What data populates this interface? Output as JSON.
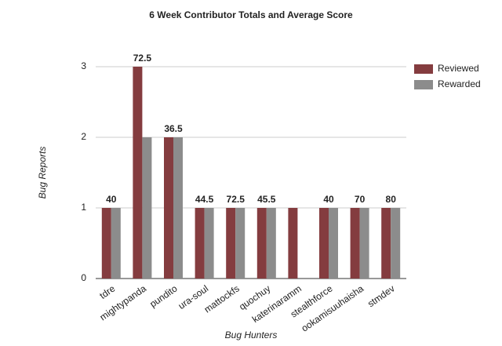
{
  "chart_data": {
    "type": "bar",
    "title": "6 Week Contributor Totals and Average Score",
    "x_label": "Bug Hunters",
    "y_label": "Bug Reports",
    "categories": [
      "tdre",
      "mightypanda",
      "pundito",
      "ura-soul",
      "mattockfs",
      "quochuy",
      "katerinaramm",
      "stealthforce",
      "ookamisuuhaisha",
      "stmdev"
    ],
    "series": [
      {
        "name": "Reviewed",
        "color": "#843c3f",
        "values": [
          1,
          3,
          2,
          1,
          1,
          1,
          1,
          1,
          1,
          1
        ]
      },
      {
        "name": "Rewarded",
        "color": "#8c8c8c",
        "values": [
          1,
          2,
          2,
          1,
          1,
          1,
          0,
          1,
          1,
          1
        ]
      }
    ],
    "average_scores": [
      40,
      72.5,
      36.5,
      44.5,
      72.5,
      45.5,
      null,
      40,
      70,
      80
    ],
    "ylim": [
      0,
      3.5
    ],
    "yticks": [
      0,
      1,
      2,
      3
    ],
    "grid": true,
    "legend": "right"
  }
}
